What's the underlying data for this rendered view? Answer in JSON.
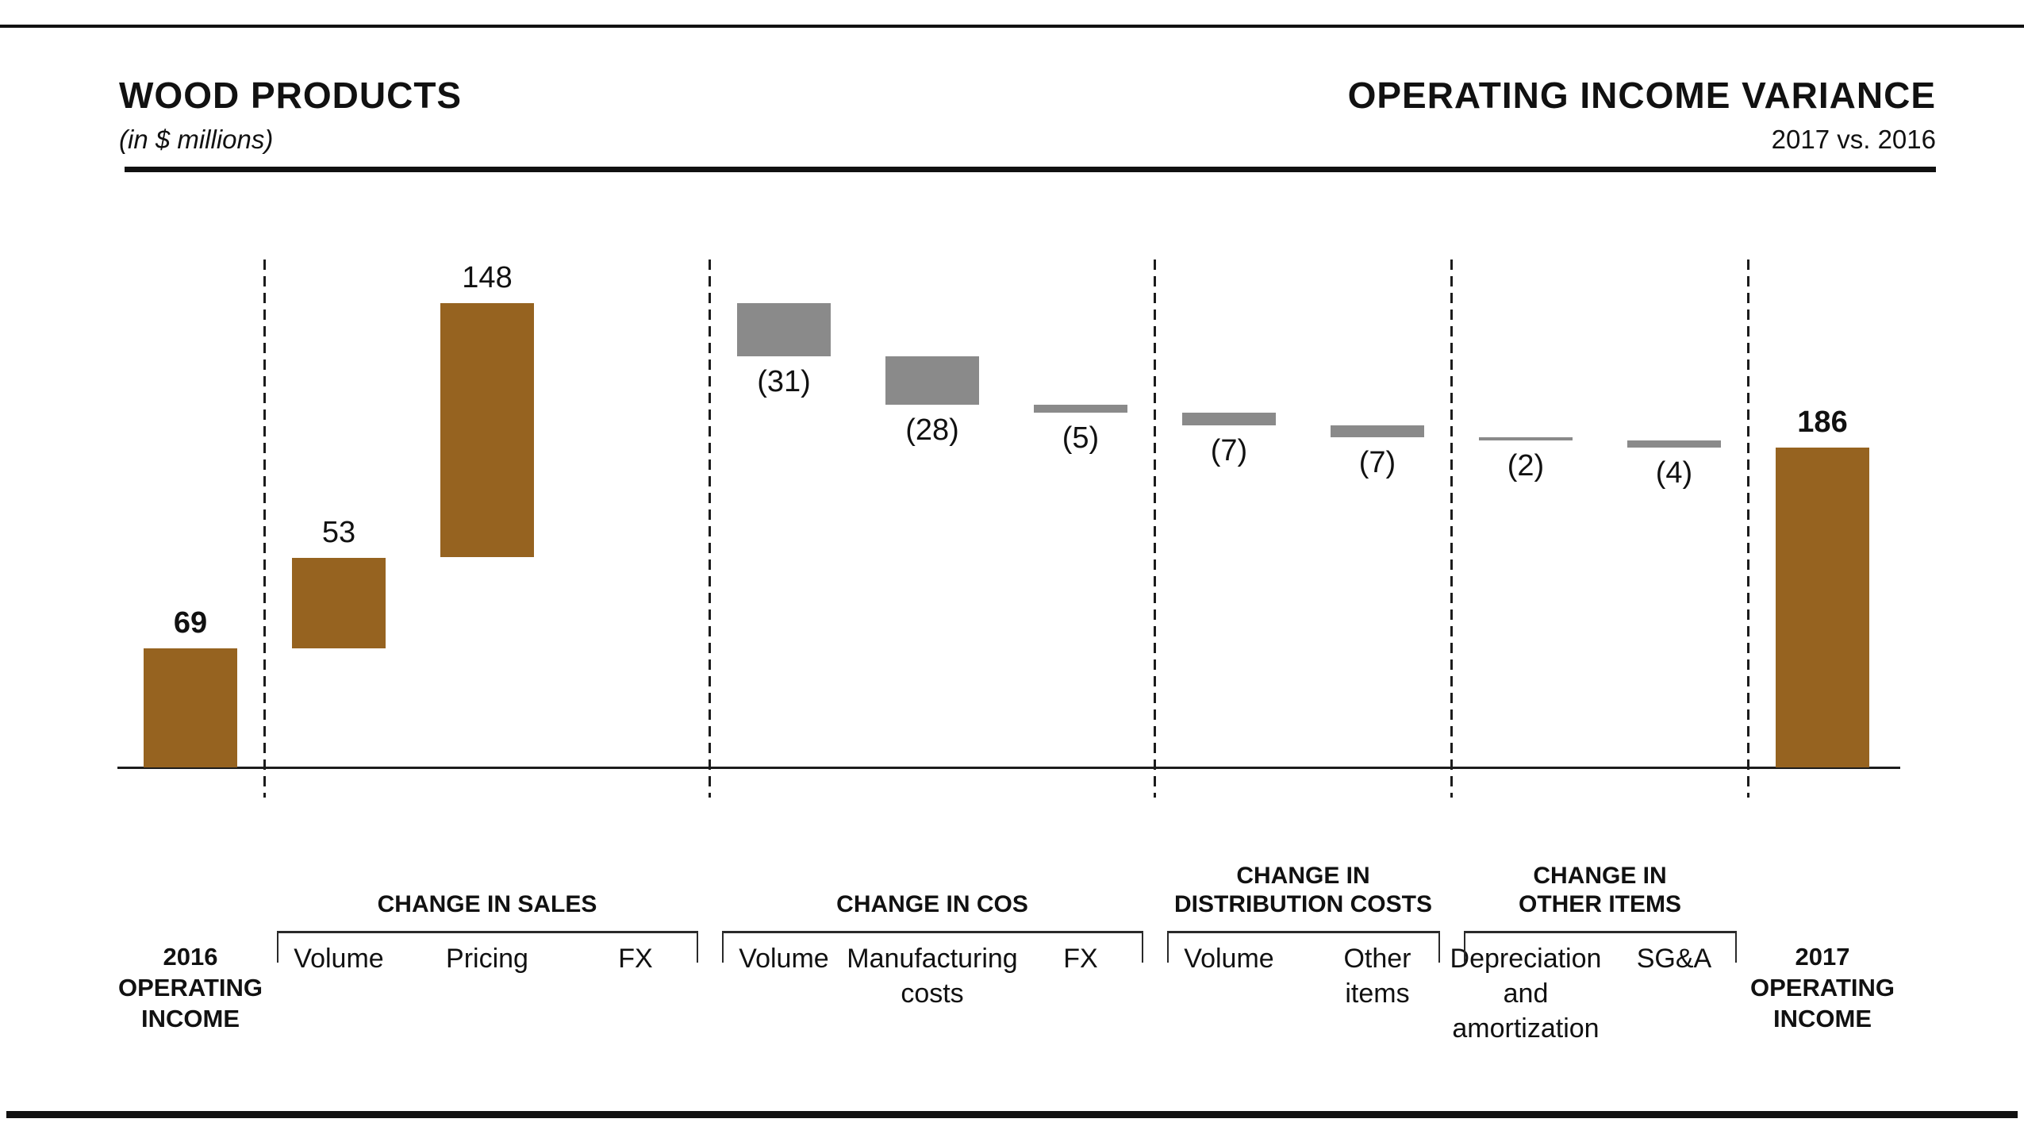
{
  "header": {
    "title_left": "WOOD PRODUCTS",
    "subtitle_left": "(in $ millions)",
    "title_right": "OPERATING INCOME VARIANCE",
    "subtitle_right": "2017 vs. 2016"
  },
  "chart_data": {
    "type": "bar",
    "subtype": "waterfall",
    "unit": "$ millions",
    "title": "WOOD PRODUCTS — OPERATING INCOME VARIANCE, 2017 vs. 2016",
    "ylim": [
      0,
      270
    ],
    "grid": "off",
    "colors": {
      "positive": "#966320",
      "negative": "#8a8a8a",
      "axis": "#1c1c1c"
    },
    "steps": [
      {
        "label_lines": [
          "2016",
          "OPERATING",
          "INCOME"
        ],
        "bold_label": true,
        "kind": "total",
        "value": 69,
        "display": "69"
      },
      {
        "label_lines": [
          "Volume"
        ],
        "bold_label": false,
        "kind": "increase",
        "value": 53,
        "display": "53"
      },
      {
        "label_lines": [
          "Pricing"
        ],
        "bold_label": false,
        "kind": "increase",
        "value": 148,
        "display": "148"
      },
      {
        "label_lines": [
          "FX"
        ],
        "bold_label": false,
        "kind": "zero",
        "value": 0,
        "display": ""
      },
      {
        "label_lines": [
          "Volume"
        ],
        "bold_label": false,
        "kind": "decrease",
        "value": -31,
        "display": "(31)"
      },
      {
        "label_lines": [
          "Manufacturing",
          "costs"
        ],
        "bold_label": false,
        "kind": "decrease",
        "value": -28,
        "display": "(28)"
      },
      {
        "label_lines": [
          "FX"
        ],
        "bold_label": false,
        "kind": "decrease",
        "value": -5,
        "display": "(5)"
      },
      {
        "label_lines": [
          "Volume"
        ],
        "bold_label": false,
        "kind": "decrease",
        "value": -7,
        "display": "(7)"
      },
      {
        "label_lines": [
          "Other",
          "items"
        ],
        "bold_label": false,
        "kind": "decrease",
        "value": -7,
        "display": "(7)"
      },
      {
        "label_lines": [
          "Depreciation",
          "and",
          "amortization"
        ],
        "bold_label": false,
        "kind": "decrease",
        "value": -2,
        "display": "(2)"
      },
      {
        "label_lines": [
          "SG&A"
        ],
        "bold_label": false,
        "kind": "decrease",
        "value": -4,
        "display": "(4)"
      },
      {
        "label_lines": [
          "2017",
          "OPERATING",
          "INCOME"
        ],
        "bold_label": true,
        "kind": "total",
        "value": 186,
        "display": "186"
      }
    ],
    "groups": [
      {
        "title_lines": [
          "CHANGE IN SALES"
        ],
        "from": 1,
        "to": 3
      },
      {
        "title_lines": [
          "CHANGE IN COS"
        ],
        "from": 4,
        "to": 6
      },
      {
        "title_lines": [
          "CHANGE IN",
          "DISTRIBUTION COSTS"
        ],
        "from": 7,
        "to": 8
      },
      {
        "title_lines": [
          "CHANGE IN",
          "OTHER ITEMS"
        ],
        "from": 9,
        "to": 10
      }
    ]
  }
}
